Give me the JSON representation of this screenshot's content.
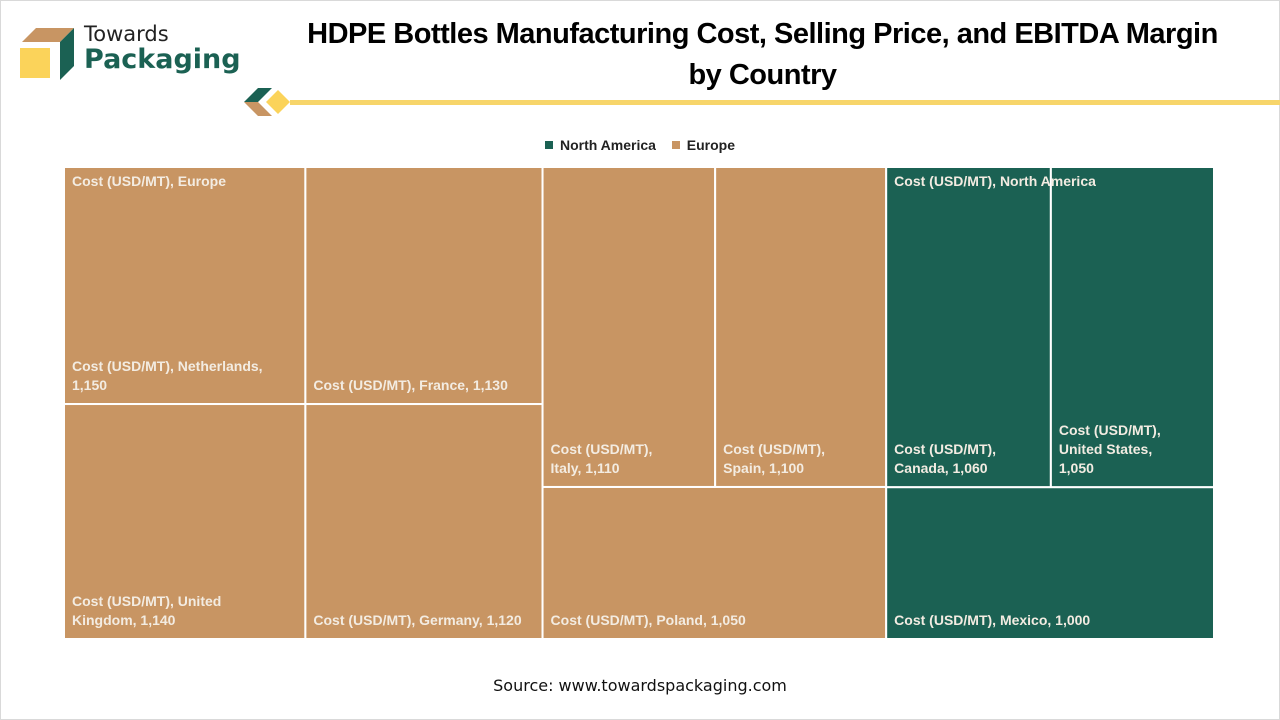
{
  "header": {
    "logo_line1": "Towards",
    "logo_line2": "Packaging",
    "title_line1": "HDPE Bottles Manufacturing Cost, Selling Price, and EBITDA Margin",
    "title_line2": "by Country"
  },
  "colors": {
    "north_america": "#1b6153",
    "europe": "#c89563",
    "accent_yellow": "#f7d56a",
    "tile_border": "#ffffff"
  },
  "legend": [
    {
      "label": "North America",
      "color": "#1b6153"
    },
    {
      "label": "Europe",
      "color": "#c89563"
    }
  ],
  "chart_data": {
    "type": "treemap",
    "title": "HDPE Bottles Manufacturing Cost, Selling Price, and EBITDA Margin by Country",
    "measure": "Cost (USD/MT)",
    "legend_position": "top-center",
    "groups": [
      {
        "name": "Europe",
        "label": "Cost (USD/MT), Europe",
        "color": "#c89563",
        "items": [
          {
            "country": "Netherlands",
            "value": 1150,
            "label": "Cost (USD/MT), Netherlands, 1,150"
          },
          {
            "country": "United Kingdom",
            "value": 1140,
            "label": "Cost (USD/MT), United Kingdom, 1,140"
          },
          {
            "country": "France",
            "value": 1130,
            "label": "Cost (USD/MT), France, 1,130"
          },
          {
            "country": "Germany",
            "value": 1120,
            "label": "Cost (USD/MT), Germany, 1,120"
          },
          {
            "country": "Italy",
            "value": 1110,
            "label": "Cost (USD/MT), Italy, 1,110"
          },
          {
            "country": "Spain",
            "value": 1100,
            "label": "Cost (USD/MT), Spain, 1,100"
          },
          {
            "country": "Poland",
            "value": 1050,
            "label": "Cost (USD/MT), Poland, 1,050"
          }
        ]
      },
      {
        "name": "North America",
        "label": "Cost (USD/MT), North America",
        "color": "#1b6153",
        "items": [
          {
            "country": "Canada",
            "value": 1060,
            "label": "Cost (USD/MT), Canada, 1,060"
          },
          {
            "country": "United States",
            "value": 1050,
            "label": "Cost (USD/MT), United States, 1,050"
          },
          {
            "country": "Mexico",
            "value": 1000,
            "label": "Cost (USD/MT), Mexico, 1,000"
          }
        ]
      }
    ]
  },
  "footer": {
    "source": "Source: www.towardspackaging.com"
  }
}
